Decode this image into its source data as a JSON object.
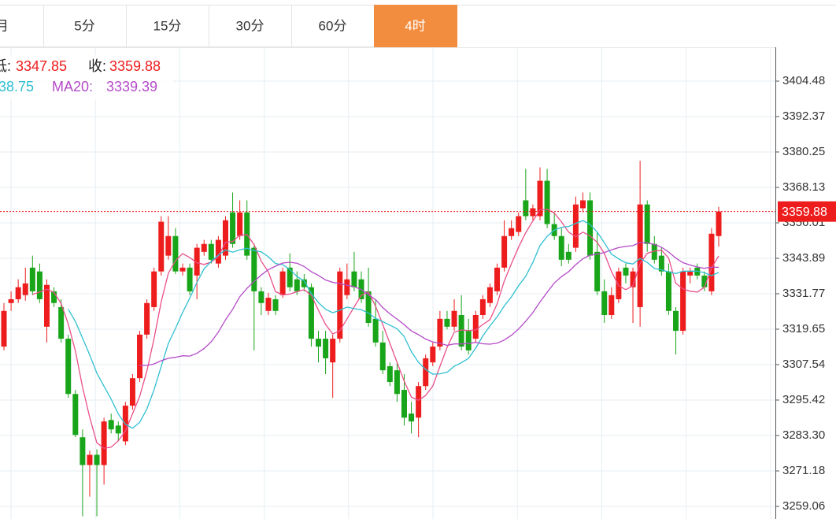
{
  "tabs": [
    "月",
    "5分",
    "15分",
    "30分",
    "60分",
    "4时"
  ],
  "active_tab": 5,
  "chart_data": {
    "type": "candlestick",
    "readout_low_label": "低:",
    "readout_close_label": "收:",
    "readouts": [
      {
        "value": 38.75,
        "color": "#2fbfd0"
      },
      {
        "label": "MA20:",
        "value": 3339.39,
        "color": "#b44ac8"
      }
    ],
    "up_color": "#ee1d1d",
    "down_color": "#19a519",
    "moving_averages": [
      {
        "period": 5,
        "color": "#ea4f8a"
      },
      {
        "period": 10,
        "color": "#2fbfd0"
      },
      {
        "period": 20,
        "color": "#b44ac8"
      }
    ],
    "ylim": [
      3254.75,
      3416.06
    ],
    "yticks": [
      3404.48,
      3392.37,
      3380.25,
      3368.13,
      3356.01,
      3343.89,
      3331.77,
      3319.65,
      3307.54,
      3295.42,
      {
        "value": 3283.3,
        "label": "3283.30"
      },
      3271.18,
      3259.06
    ],
    "grid": true,
    "last_price_color": "#ee1d1d",
    "ohlc": [
      [
        3313.7,
        3328.6,
        3312.4,
        3325.9
      ],
      [
        3328.6,
        3332.6,
        3325.9,
        3329.9
      ],
      [
        3329.9,
        3336.7,
        3328.6,
        3334.0
      ],
      [
        3331.3,
        3340.7,
        3329.4,
        3335.3
      ],
      [
        3340.7,
        3344.8,
        3331.3,
        3332.6
      ],
      [
        3339.4,
        3342.1,
        3328.6,
        3329.9
      ],
      [
        3320.5,
        3336.7,
        3315.1,
        3334.8
      ],
      [
        3332.6,
        3334.0,
        3327.2,
        3328.6
      ],
      [
        3327.2,
        3329.9,
        3315.1,
        3316.4
      ],
      [
        3316.4,
        3317.8,
        3296.2,
        3297.5
      ],
      [
        3297.5,
        3298.9,
        3282.7,
        3283.5
      ],
      [
        3282.7,
        3285.4,
        3255.7,
        3273.2
      ],
      [
        3273.2,
        3278.1,
        3262.4,
        3276.7
      ],
      [
        3276.7,
        3278.6,
        3255.7,
        3273.2
      ],
      [
        3273.2,
        3289.4,
        3266.5,
        3288.1
      ],
      [
        3288.6,
        3290.8,
        3284.0,
        3285.4
      ],
      [
        3286.7,
        3288.1,
        3281.3,
        3284.0
      ],
      [
        3281.3,
        3294.8,
        3280.0,
        3293.5
      ],
      [
        3293.5,
        3304.3,
        3292.1,
        3302.9
      ],
      [
        3302.9,
        3319.1,
        3301.6,
        3317.8
      ],
      [
        3317.8,
        3329.9,
        3316.4,
        3328.6
      ],
      [
        3327.2,
        3340.7,
        3325.9,
        3339.4
      ],
      [
        3339.4,
        3358.3,
        3338.0,
        3356.4
      ],
      [
        3344.8,
        3358.3,
        3343.4,
        3351.5
      ],
      [
        3351.5,
        3354.2,
        3338.5,
        3339.4
      ],
      [
        3339.4,
        3342.1,
        3338.0,
        3340.7
      ],
      [
        3340.7,
        3342.1,
        3331.3,
        3332.6
      ],
      [
        3338.0,
        3348.8,
        3329.9,
        3347.5
      ],
      [
        3346.1,
        3350.2,
        3344.8,
        3348.8
      ],
      [
        3348.8,
        3350.2,
        3342.1,
        3343.4
      ],
      [
        3342.1,
        3351.5,
        3340.7,
        3350.2
      ],
      [
        3344.8,
        3358.3,
        3343.4,
        3356.9
      ],
      [
        3359.6,
        3366.4,
        3347.5,
        3348.8
      ],
      [
        3351.5,
        3363.7,
        3350.2,
        3359.6
      ],
      [
        3359.6,
        3363.7,
        3343.4,
        3344.8
      ],
      [
        3347.5,
        3348.8,
        3312.4,
        3332.6
      ],
      [
        3332.6,
        3334.0,
        3324.5,
        3328.6
      ],
      [
        3325.9,
        3332.1,
        3324.5,
        3330.4
      ],
      [
        3329.9,
        3331.3,
        3324.5,
        3325.9
      ],
      [
        3331.3,
        3340.7,
        3330.4,
        3339.4
      ],
      [
        3340.7,
        3345.6,
        3332.6,
        3334.0
      ],
      [
        3336.7,
        3339.4,
        3331.3,
        3332.6
      ],
      [
        3336.7,
        3338.5,
        3332.6,
        3334.0
      ],
      [
        3334.0,
        3335.3,
        3313.7,
        3316.4
      ],
      [
        3316.4,
        3319.1,
        3308.3,
        3313.7
      ],
      [
        3316.4,
        3319.1,
        3304.3,
        3309.7
      ],
      [
        3308.3,
        3317.8,
        3296.2,
        3316.4
      ],
      [
        3316.4,
        3340.7,
        3315.1,
        3339.4
      ],
      [
        3331.3,
        3342.1,
        3329.9,
        3336.7
      ],
      [
        3339.4,
        3346.1,
        3332.6,
        3334.0
      ],
      [
        3336.7,
        3339.4,
        3328.6,
        3329.9
      ],
      [
        3332.6,
        3340.7,
        3320.5,
        3321.8
      ],
      [
        3323.2,
        3329.9,
        3313.7,
        3315.1
      ],
      [
        3315.1,
        3319.1,
        3304.3,
        3305.6
      ],
      [
        3307.0,
        3308.3,
        3300.2,
        3301.6
      ],
      [
        3305.6,
        3308.3,
        3294.8,
        3297.5
      ],
      [
        3298.9,
        3304.3,
        3286.7,
        3289.4
      ],
      [
        3290.8,
        3294.8,
        3284.0,
        3288.1
      ],
      [
        3289.4,
        3301.6,
        3282.7,
        3300.2
      ],
      [
        3300.2,
        3311.0,
        3298.9,
        3309.7
      ],
      [
        3308.3,
        3315.1,
        3307.0,
        3313.7
      ],
      [
        3313.7,
        3325.9,
        3312.4,
        3323.2
      ],
      [
        3323.2,
        3325.9,
        3319.6,
        3320.5
      ],
      [
        3320.5,
        3329.9,
        3319.1,
        3325.9
      ],
      [
        3324.5,
        3331.3,
        3312.4,
        3313.7
      ],
      [
        3319.1,
        3323.2,
        3311.0,
        3312.4
      ],
      [
        3316.4,
        3325.9,
        3315.1,
        3324.5
      ],
      [
        3324.5,
        3331.3,
        3323.2,
        3329.9
      ],
      [
        3328.6,
        3335.3,
        3327.2,
        3334.0
      ],
      [
        3332.6,
        3342.1,
        3331.3,
        3340.7
      ],
      [
        3340.7,
        3356.9,
        3339.4,
        3351.5
      ],
      [
        3351.5,
        3356.9,
        3350.2,
        3354.2
      ],
      [
        3352.9,
        3359.6,
        3351.5,
        3358.3
      ],
      [
        3363.7,
        3374.5,
        3356.9,
        3358.3
      ],
      [
        3358.3,
        3362.3,
        3356.9,
        3361.0
      ],
      [
        3358.3,
        3375.0,
        3356.9,
        3370.4
      ],
      [
        3370.4,
        3374.5,
        3354.2,
        3355.6
      ],
      [
        3355.6,
        3359.6,
        3350.2,
        3351.5
      ],
      [
        3351.5,
        3354.2,
        3341.2,
        3343.4
      ],
      [
        3346.1,
        3348.8,
        3342.1,
        3343.4
      ],
      [
        3347.5,
        3365.0,
        3346.1,
        3362.3
      ],
      [
        3361.0,
        3366.4,
        3359.6,
        3363.7
      ],
      [
        3363.7,
        3366.4,
        3343.4,
        3344.8
      ],
      [
        3346.1,
        3352.9,
        3331.3,
        3332.6
      ],
      [
        3332.6,
        3336.7,
        3321.8,
        3324.5
      ],
      [
        3324.5,
        3334.0,
        3323.2,
        3331.3
      ],
      [
        3329.9,
        3340.7,
        3328.6,
        3339.4
      ],
      [
        3340.7,
        3342.1,
        3335.3,
        3338.0
      ],
      [
        3334.0,
        3340.7,
        3321.8,
        3339.4
      ],
      [
        3327.2,
        3377.2,
        3320.5,
        3362.3
      ],
      [
        3362.3,
        3363.7,
        3346.1,
        3348.8
      ],
      [
        3348.8,
        3351.5,
        3342.1,
        3343.4
      ],
      [
        3344.8,
        3347.5,
        3338.0,
        3339.4
      ],
      [
        3339.4,
        3342.1,
        3324.5,
        3325.9
      ],
      [
        3325.9,
        3327.2,
        3311.0,
        3319.1
      ],
      [
        3319.1,
        3340.7,
        3317.8,
        3339.4
      ],
      [
        3338.0,
        3340.7,
        3335.3,
        3339.4
      ],
      [
        3340.7,
        3342.1,
        3336.7,
        3338.0
      ],
      [
        3338.0,
        3339.4,
        3332.6,
        3334.0
      ],
      [
        3332.6,
        3354.2,
        3331.3,
        3352.3
      ],
      [
        3351.5,
        3361.5,
        3347.85,
        3359.88
      ]
    ]
  }
}
